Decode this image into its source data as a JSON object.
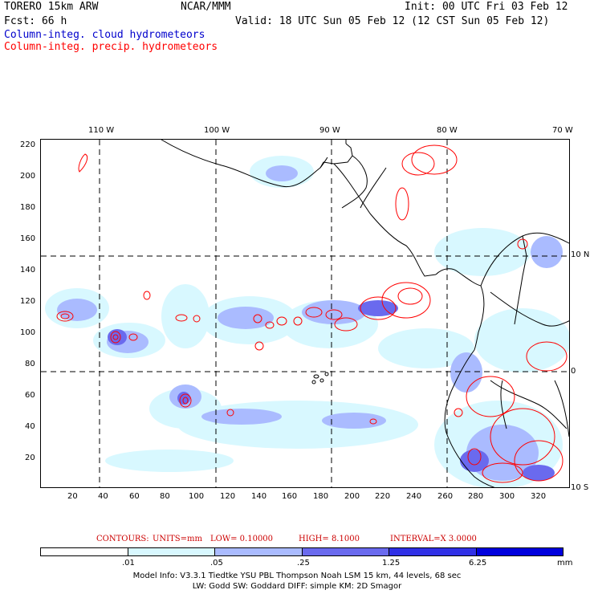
{
  "header": {
    "model": "TORERO  15km ARW",
    "center": "NCAR/MMM",
    "init": "Init: 00 UTC Fri 03 Feb 12",
    "fcst": "Fcst:   66 h",
    "valid": "Valid: 18 UTC Sun 05 Feb 12 (12 CST Sun 05 Feb 12)"
  },
  "legend": {
    "cloud": "Column-integ. cloud hydrometeors",
    "precip": "Column-integ. precip. hydrometeors",
    "cloud_color": "#0000cc",
    "precip_color": "#ff0000"
  },
  "map": {
    "top_ticks": [
      "110 W",
      "100 W",
      "90 W",
      "80 W",
      "70 W"
    ],
    "left_ticks": [
      "220",
      "200",
      "180",
      "160",
      "140",
      "120",
      "100",
      "80",
      "60",
      "40",
      "20"
    ],
    "bottom_ticks": [
      "20",
      "40",
      "60",
      "80",
      "100",
      "120",
      "140",
      "160",
      "180",
      "200",
      "220",
      "240",
      "260",
      "280",
      "300",
      "320"
    ],
    "right_ticks": [
      "10 N",
      "0",
      "10 S"
    ]
  },
  "contours": {
    "label": "CONTOURS:",
    "units": "UNITS=mm",
    "low": "LOW= 0.10000",
    "high": "HIGH=  8.1000",
    "interval": "INTERVAL=X  3.0000"
  },
  "colorbar": {
    "labels": [
      ".01",
      ".05",
      ".25",
      "1.25",
      "6.25"
    ],
    "unit": "mm",
    "colors": [
      "#ffffff",
      "#d8f8ff",
      "#aabbff",
      "#6a6aee",
      "#3030e6",
      "#0000dd"
    ]
  },
  "footer": {
    "line1": "Model Info: V3.3.1    Tiedtke YSU PBL  Thompson    Noah LSM  15 km,   44 levels,   68 sec",
    "line2": "LW: Godd SW: Goddard DIFF: simple KM: 2D Smagor"
  }
}
